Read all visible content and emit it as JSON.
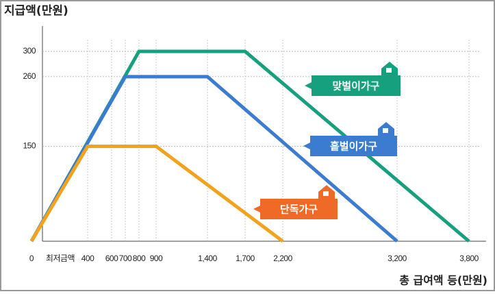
{
  "chart_data": {
    "type": "line",
    "title": "지급액(만원)",
    "x_label": "총 급여액 등(만원)",
    "min_label": "최저금액",
    "series": [
      {
        "name": "맞벌이가구",
        "color": "#16a07e",
        "label_color": "#16a07e",
        "x": [
          0,
          800,
          1700,
          3800
        ],
        "values": [
          0,
          300,
          300,
          0
        ]
      },
      {
        "name": "홑벌이가구",
        "color": "#3b7bd0",
        "label_color": "#3b7bd0",
        "x": [
          0,
          700,
          1400,
          3200
        ],
        "values": [
          0,
          260,
          260,
          0
        ]
      },
      {
        "name": "단독가구",
        "color": "#f2a21d",
        "label_color": "#ee6a26",
        "x": [
          0,
          400,
          900,
          2200
        ],
        "values": [
          0,
          150,
          150,
          0
        ]
      }
    ],
    "xticks": [
      0,
      400,
      600,
      700,
      800,
      900,
      {
        "value": 1400,
        "label": "1,400"
      },
      {
        "value": 1700,
        "label": "1,700"
      },
      {
        "value": 2200,
        "label": "2,200"
      },
      {
        "value": 3200,
        "label": "3,200"
      },
      {
        "value": 3800,
        "label": "3,800"
      }
    ],
    "ylim": [
      0,
      340
    ],
    "yticks": [
      150,
      260,
      300
    ]
  }
}
